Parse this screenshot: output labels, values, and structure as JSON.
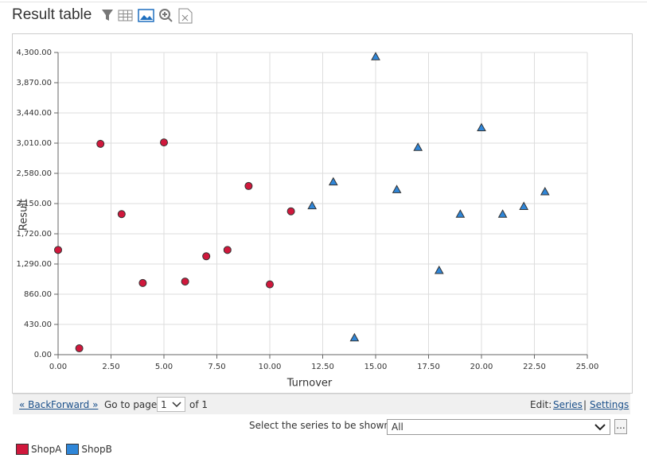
{
  "header": {
    "title": "Result table"
  },
  "chart_data": {
    "type": "scatter",
    "xlabel": "Turnover",
    "ylabel": "Result",
    "series": [
      {
        "name": "ShopA",
        "color": "#d0183c",
        "marker": "circle",
        "x": [
          0,
          1,
          2,
          3,
          4,
          5,
          6,
          7,
          8,
          9,
          10,
          11
        ],
        "values": [
          1490,
          90,
          3000,
          2000,
          1020,
          3020,
          1040,
          1400,
          1490,
          2400,
          1000,
          2040
        ]
      },
      {
        "name": "ShopB",
        "color": "#2f86d8",
        "marker": "triangle",
        "x": [
          12,
          13,
          14,
          15,
          16,
          17,
          18,
          19,
          20,
          21,
          22,
          23
        ],
        "values": [
          2120,
          2460,
          240,
          4240,
          2350,
          2950,
          1200,
          2000,
          3230,
          2000,
          2110,
          2320
        ]
      }
    ],
    "xlim": [
      0,
      25
    ],
    "xticks": [
      {
        "value": 0,
        "label": "0.00"
      },
      {
        "value": 2.5,
        "label": "2.50"
      },
      {
        "value": 5,
        "label": "5.00"
      },
      {
        "value": 7.5,
        "label": "7.50"
      },
      {
        "value": 10,
        "label": "10.00"
      },
      {
        "value": 12.5,
        "label": "12.50"
      },
      {
        "value": 15,
        "label": "15.00"
      },
      {
        "value": 17.5,
        "label": "17.50"
      },
      {
        "value": 20,
        "label": "20.00"
      },
      {
        "value": 22.5,
        "label": "22.50"
      },
      {
        "value": 25,
        "label": "25.00"
      }
    ],
    "ylim": [
      0,
      4300
    ],
    "yticks": [
      {
        "value": 0,
        "label": "0.00"
      },
      {
        "value": 430,
        "label": "430.00"
      },
      {
        "value": 860,
        "label": "860.00"
      },
      {
        "value": 1290,
        "label": "1,290.00"
      },
      {
        "value": 1720,
        "label": "1,720.00"
      },
      {
        "value": 2150,
        "label": "2,150.00"
      },
      {
        "value": 2580,
        "label": "2,580.00"
      },
      {
        "value": 3010,
        "label": "3,010.00"
      },
      {
        "value": 3440,
        "label": "3,440.00"
      },
      {
        "value": 3870,
        "label": "3,870.00"
      },
      {
        "value": 4300,
        "label": "4,300.00"
      }
    ],
    "grid": true
  },
  "pager": {
    "back": "« Back",
    "forward": "Forward »",
    "go_to": "Go to page",
    "page": "1",
    "of": "of 1",
    "edit": "Edit:",
    "series_link": "Series",
    "separator": "|",
    "settings": "Settings"
  },
  "filter": {
    "label": "Select the series to be shown:",
    "selected": "All",
    "more": "..."
  }
}
